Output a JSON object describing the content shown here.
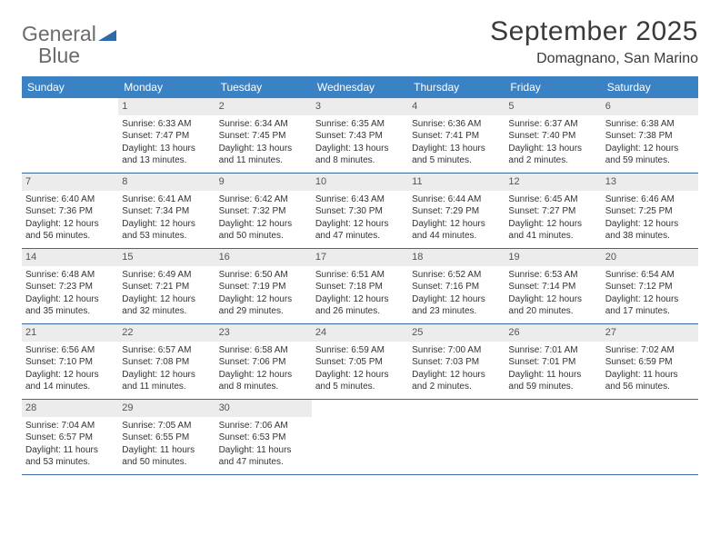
{
  "logo": {
    "textGray": "General",
    "textBlue": "Blue",
    "triColor": "#2f6aa8"
  },
  "header": {
    "title": "September 2025",
    "location": "Domagnano, San Marino"
  },
  "colors": {
    "accent": "#3b82c4",
    "dayNumBg": "#ececec",
    "ruleColor": "#3b6aa0"
  },
  "weekdays": [
    "Sunday",
    "Monday",
    "Tuesday",
    "Wednesday",
    "Thursday",
    "Friday",
    "Saturday"
  ],
  "weeks": [
    [
      null,
      {
        "n": "1",
        "sr": "Sunrise: 6:33 AM",
        "ss": "Sunset: 7:47 PM",
        "dl": "Daylight: 13 hours and 13 minutes."
      },
      {
        "n": "2",
        "sr": "Sunrise: 6:34 AM",
        "ss": "Sunset: 7:45 PM",
        "dl": "Daylight: 13 hours and 11 minutes."
      },
      {
        "n": "3",
        "sr": "Sunrise: 6:35 AM",
        "ss": "Sunset: 7:43 PM",
        "dl": "Daylight: 13 hours and 8 minutes."
      },
      {
        "n": "4",
        "sr": "Sunrise: 6:36 AM",
        "ss": "Sunset: 7:41 PM",
        "dl": "Daylight: 13 hours and 5 minutes."
      },
      {
        "n": "5",
        "sr": "Sunrise: 6:37 AM",
        "ss": "Sunset: 7:40 PM",
        "dl": "Daylight: 13 hours and 2 minutes."
      },
      {
        "n": "6",
        "sr": "Sunrise: 6:38 AM",
        "ss": "Sunset: 7:38 PM",
        "dl": "Daylight: 12 hours and 59 minutes."
      }
    ],
    [
      {
        "n": "7",
        "sr": "Sunrise: 6:40 AM",
        "ss": "Sunset: 7:36 PM",
        "dl": "Daylight: 12 hours and 56 minutes."
      },
      {
        "n": "8",
        "sr": "Sunrise: 6:41 AM",
        "ss": "Sunset: 7:34 PM",
        "dl": "Daylight: 12 hours and 53 minutes."
      },
      {
        "n": "9",
        "sr": "Sunrise: 6:42 AM",
        "ss": "Sunset: 7:32 PM",
        "dl": "Daylight: 12 hours and 50 minutes."
      },
      {
        "n": "10",
        "sr": "Sunrise: 6:43 AM",
        "ss": "Sunset: 7:30 PM",
        "dl": "Daylight: 12 hours and 47 minutes."
      },
      {
        "n": "11",
        "sr": "Sunrise: 6:44 AM",
        "ss": "Sunset: 7:29 PM",
        "dl": "Daylight: 12 hours and 44 minutes."
      },
      {
        "n": "12",
        "sr": "Sunrise: 6:45 AM",
        "ss": "Sunset: 7:27 PM",
        "dl": "Daylight: 12 hours and 41 minutes."
      },
      {
        "n": "13",
        "sr": "Sunrise: 6:46 AM",
        "ss": "Sunset: 7:25 PM",
        "dl": "Daylight: 12 hours and 38 minutes."
      }
    ],
    [
      {
        "n": "14",
        "sr": "Sunrise: 6:48 AM",
        "ss": "Sunset: 7:23 PM",
        "dl": "Daylight: 12 hours and 35 minutes."
      },
      {
        "n": "15",
        "sr": "Sunrise: 6:49 AM",
        "ss": "Sunset: 7:21 PM",
        "dl": "Daylight: 12 hours and 32 minutes."
      },
      {
        "n": "16",
        "sr": "Sunrise: 6:50 AM",
        "ss": "Sunset: 7:19 PM",
        "dl": "Daylight: 12 hours and 29 minutes."
      },
      {
        "n": "17",
        "sr": "Sunrise: 6:51 AM",
        "ss": "Sunset: 7:18 PM",
        "dl": "Daylight: 12 hours and 26 minutes."
      },
      {
        "n": "18",
        "sr": "Sunrise: 6:52 AM",
        "ss": "Sunset: 7:16 PM",
        "dl": "Daylight: 12 hours and 23 minutes."
      },
      {
        "n": "19",
        "sr": "Sunrise: 6:53 AM",
        "ss": "Sunset: 7:14 PM",
        "dl": "Daylight: 12 hours and 20 minutes."
      },
      {
        "n": "20",
        "sr": "Sunrise: 6:54 AM",
        "ss": "Sunset: 7:12 PM",
        "dl": "Daylight: 12 hours and 17 minutes."
      }
    ],
    [
      {
        "n": "21",
        "sr": "Sunrise: 6:56 AM",
        "ss": "Sunset: 7:10 PM",
        "dl": "Daylight: 12 hours and 14 minutes."
      },
      {
        "n": "22",
        "sr": "Sunrise: 6:57 AM",
        "ss": "Sunset: 7:08 PM",
        "dl": "Daylight: 12 hours and 11 minutes."
      },
      {
        "n": "23",
        "sr": "Sunrise: 6:58 AM",
        "ss": "Sunset: 7:06 PM",
        "dl": "Daylight: 12 hours and 8 minutes."
      },
      {
        "n": "24",
        "sr": "Sunrise: 6:59 AM",
        "ss": "Sunset: 7:05 PM",
        "dl": "Daylight: 12 hours and 5 minutes."
      },
      {
        "n": "25",
        "sr": "Sunrise: 7:00 AM",
        "ss": "Sunset: 7:03 PM",
        "dl": "Daylight: 12 hours and 2 minutes."
      },
      {
        "n": "26",
        "sr": "Sunrise: 7:01 AM",
        "ss": "Sunset: 7:01 PM",
        "dl": "Daylight: 11 hours and 59 minutes."
      },
      {
        "n": "27",
        "sr": "Sunrise: 7:02 AM",
        "ss": "Sunset: 6:59 PM",
        "dl": "Daylight: 11 hours and 56 minutes."
      }
    ],
    [
      {
        "n": "28",
        "sr": "Sunrise: 7:04 AM",
        "ss": "Sunset: 6:57 PM",
        "dl": "Daylight: 11 hours and 53 minutes."
      },
      {
        "n": "29",
        "sr": "Sunrise: 7:05 AM",
        "ss": "Sunset: 6:55 PM",
        "dl": "Daylight: 11 hours and 50 minutes."
      },
      {
        "n": "30",
        "sr": "Sunrise: 7:06 AM",
        "ss": "Sunset: 6:53 PM",
        "dl": "Daylight: 11 hours and 47 minutes."
      },
      null,
      null,
      null,
      null
    ]
  ]
}
